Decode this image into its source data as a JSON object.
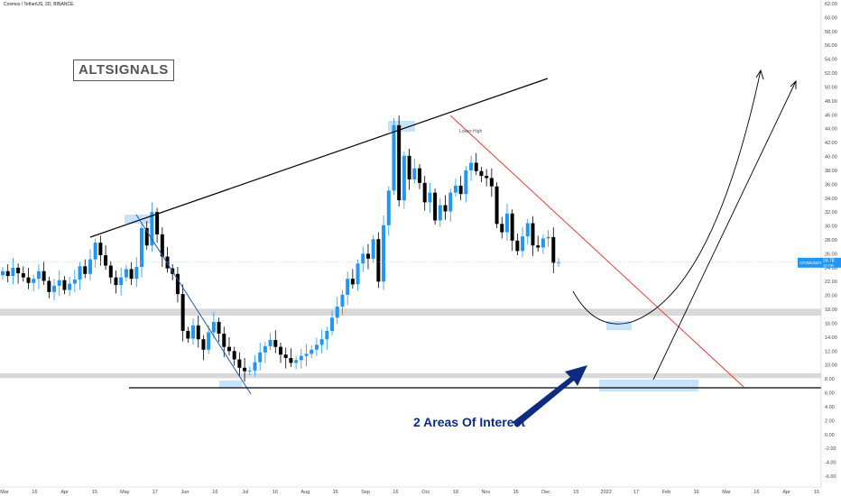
{
  "header": {
    "symbol_line": "Cosmos / TetherUS, 2D, BINANCE"
  },
  "brand": {
    "text": "ALTSIGNALS"
  },
  "annotations": {
    "interest": "2 Areas Of Interest",
    "lower_high": "Lower High"
  },
  "price_label": {
    "value": "24.78",
    "sub": "ATOMUSDT",
    "timer": "1d 23h"
  },
  "colors": {
    "up": "#2196f3",
    "down": "#000000",
    "trend_up": "#000000",
    "trend_down_blue": "#1e5bb8",
    "trend_down_red": "#e53935",
    "zone": "#d9d9d9",
    "highlight": "#bbdefb",
    "arrow": "#0d2c80"
  },
  "chart_data": {
    "type": "candlestick",
    "y_axis": {
      "range": [
        -6,
        62
      ],
      "ticks": [
        "62.00",
        "60.00",
        "58.00",
        "56.00",
        "54.00",
        "52.00",
        "50.00",
        "48.00",
        "46.00",
        "44.00",
        "42.00",
        "40.00",
        "38.00",
        "36.00",
        "34.00",
        "32.00",
        "30.00",
        "28.00",
        "26.00",
        "24.00",
        "22.00",
        "20.00",
        "18.00",
        "16.00",
        "14.00",
        "12.00",
        "10.00",
        "8.00",
        "6.00",
        "4.00",
        "2.00",
        "0.00",
        "-2.00",
        "-4.00",
        "-6.00"
      ]
    },
    "x_axis": {
      "labels": [
        "Mar",
        "16",
        "Apr",
        "15",
        "May",
        "17",
        "Jun",
        "16",
        "Jul",
        "16",
        "Aug",
        "15",
        "Sep",
        "16",
        "Oct",
        "18",
        "Nov",
        "15",
        "Dec",
        "15",
        "2022",
        "17",
        "Feb",
        "16",
        "Mar",
        "16",
        "Apr",
        "15"
      ]
    },
    "close_series": [
      23.5,
      22.8,
      24.0,
      23.2,
      22.6,
      21.8,
      22.4,
      23.5,
      22.1,
      20.5,
      21.4,
      22.2,
      20.8,
      21.7,
      22.3,
      24.2,
      23.1,
      25.2,
      27.6,
      25.8,
      24.3,
      22.6,
      21.5,
      22.6,
      23.8,
      22.4,
      24.1,
      29.7,
      27.2,
      32.0,
      28.8,
      25.6,
      23.9,
      23.1,
      20.2,
      14.9,
      13.8,
      15.7,
      13.7,
      12.2,
      14.7,
      16.2,
      14.5,
      12.6,
      12.0,
      10.8,
      9.6,
      9.1,
      9.2,
      10.4,
      11.8,
      12.7,
      13.6,
      12.6,
      11.5,
      11.0,
      10.3,
      10.7,
      11.3,
      11.6,
      12.2,
      12.9,
      13.7,
      14.9,
      16.8,
      18.4,
      20.1,
      22.4,
      21.6,
      24.6,
      26.0,
      25.3,
      28.1,
      22.0,
      30.1,
      35.1,
      44.5,
      33.7,
      40.1,
      36.7,
      38.3,
      36.2,
      33.4,
      34.8,
      30.8,
      33.0,
      32.1,
      34.8,
      35.8,
      34.6,
      38.0,
      39.1,
      37.9,
      37.2,
      36.9,
      35.7,
      30.3,
      29.1,
      31.8,
      27.9,
      26.4,
      28.5,
      30.4,
      27.2,
      26.9,
      28.2,
      28.4,
      24.7,
      24.8
    ],
    "current_price": 24.78,
    "zones": [
      {
        "name": "support-zone-upper",
        "price_range": [
          17.1,
          18.1
        ]
      },
      {
        "name": "support-zone-lower",
        "price_range": [
          8.1,
          8.8
        ]
      }
    ],
    "trendlines": [
      {
        "name": "ascending-resistance",
        "from": [
          "Mar 28",
          29.9
        ],
        "to": [
          "Nov 26",
          51.8
        ]
      },
      {
        "name": "descending-trendline-blue",
        "from": [
          "May 3",
          33.2
        ],
        "to": [
          "Jul 2",
          7.6
        ]
      },
      {
        "name": "descending-trendline-red",
        "from": [
          "Oct 10",
          46.3
        ],
        "to": [
          "Feb 28",
          8.0
        ]
      },
      {
        "name": "support-line",
        "from": [
          "Apr 23",
          8.3
        ],
        "to": [
          "Apr 30",
          8.3
        ]
      }
    ]
  }
}
